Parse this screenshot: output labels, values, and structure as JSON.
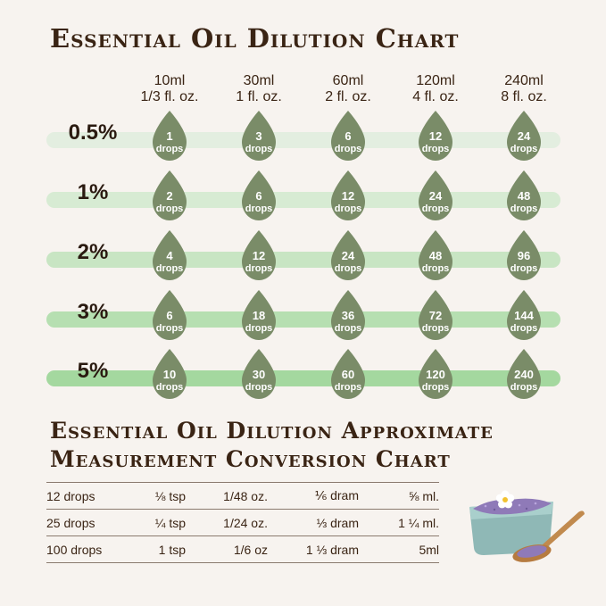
{
  "title": "Essential Oil Dilution Chart",
  "columns": [
    {
      "ml": "10ml",
      "oz": "1/3 fl. oz."
    },
    {
      "ml": "30ml",
      "oz": "1 fl. oz."
    },
    {
      "ml": "60ml",
      "oz": "2 fl. oz."
    },
    {
      "ml": "120ml",
      "oz": "4 fl. oz."
    },
    {
      "ml": "240ml",
      "oz": "8 fl. oz."
    }
  ],
  "unit_label": "drops",
  "rows": [
    {
      "percent": "0.5%",
      "drops": [
        "1",
        "3",
        "6",
        "12",
        "24"
      ]
    },
    {
      "percent": "1%",
      "drops": [
        "2",
        "6",
        "12",
        "24",
        "48"
      ]
    },
    {
      "percent": "2%",
      "drops": [
        "4",
        "12",
        "24",
        "48",
        "96"
      ]
    },
    {
      "percent": "3%",
      "drops": [
        "6",
        "18",
        "36",
        "72",
        "144"
      ]
    },
    {
      "percent": "5%",
      "drops": [
        "10",
        "30",
        "60",
        "120",
        "240"
      ]
    }
  ],
  "bar_colors": [
    "#e3eee0",
    "#d7ebd3",
    "#c8e5c3",
    "#b6dfb1",
    "#a4d89f"
  ],
  "drop_color": "#7a8c68",
  "conversion": {
    "title_line1": "Essential Oil Dilution Approximate",
    "title_line2": "Measurement Conversion Chart",
    "rows": [
      [
        "12 drops",
        "⅛ tsp",
        "1/48 oz.",
        "⅙ dram",
        "⅝ ml."
      ],
      [
        "25 drops",
        "¼ tsp",
        "1/24 oz.",
        "⅓ dram",
        "1 ¼ ml."
      ],
      [
        "100 drops",
        "1 tsp",
        "1/6 oz",
        "1 ⅓ dram",
        "5ml"
      ]
    ]
  },
  "illustration": "bowl-of-lavender-salt-with-flower-and-wooden-spoon"
}
